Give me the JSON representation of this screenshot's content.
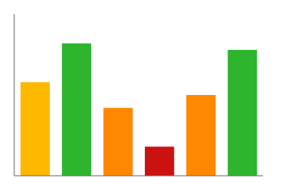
{
  "chart_data": {
    "type": "bar",
    "categories": [
      null,
      null,
      null,
      null,
      null,
      null
    ],
    "values": [
      58,
      82,
      42,
      18,
      50,
      78
    ],
    "colors": [
      "#FFB800",
      "#2DB52D",
      "#FF8800",
      "#CC1111",
      "#FF8800",
      "#2DB52D"
    ],
    "ylim": [
      0,
      100
    ],
    "tick_labels": false
  }
}
